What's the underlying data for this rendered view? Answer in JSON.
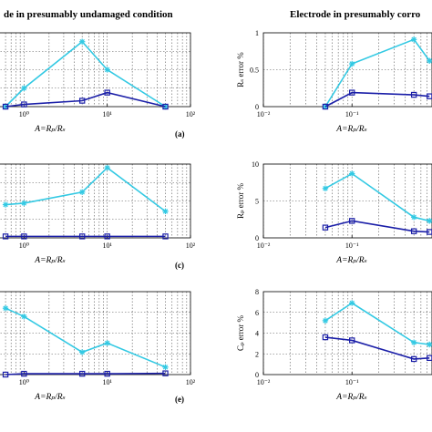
{
  "figure": {
    "left_heading": "de in presumably undamaged condition",
    "right_heading": "Electrode in presumably corro"
  },
  "colors": {
    "cyan": "#33c9e3",
    "navy": "#1b1fa8",
    "grid": "#555555"
  },
  "chart_data": [
    {
      "id": "left-a",
      "type": "line",
      "xscale": "log",
      "x_ticks": [
        "10⁰",
        "10¹",
        "10²"
      ],
      "x_tick_values": [
        1,
        10,
        100
      ],
      "xlim": [
        0.4,
        100
      ],
      "ylim": [
        0,
        1
      ],
      "xlabel": "A=Rₚ/Rₛ",
      "series": [
        {
          "color": "cyan",
          "marker": "star",
          "x": [
            0.6,
            1,
            5,
            10,
            50
          ],
          "y": [
            0.0,
            0.25,
            0.88,
            0.5,
            0.0
          ]
        },
        {
          "color": "navy",
          "marker": "square",
          "x": [
            0.6,
            1,
            5,
            10,
            50
          ],
          "y": [
            0.0,
            0.03,
            0.08,
            0.19,
            0.0
          ]
        }
      ],
      "panel_label": "(a)"
    },
    {
      "id": "right-b",
      "type": "line",
      "xscale": "log",
      "x_ticks": [
        "10⁻²",
        "10⁻¹"
      ],
      "x_tick_values": [
        0.01,
        0.1
      ],
      "y_ticks": [
        "0",
        "0.5",
        "1"
      ],
      "y_tick_values": [
        0,
        0.5,
        1
      ],
      "xlim": [
        0.01,
        0.8
      ],
      "ylim": [
        0,
        1
      ],
      "ylabel": "Rₛ error %",
      "xlabel": "A=Rₚ/Rₛ",
      "series": [
        {
          "color": "cyan",
          "marker": "star",
          "x": [
            0.05,
            0.1,
            0.5,
            0.75
          ],
          "y": [
            0.0,
            0.58,
            0.91,
            0.62
          ]
        },
        {
          "color": "navy",
          "marker": "square",
          "x": [
            0.05,
            0.1,
            0.5,
            0.75
          ],
          "y": [
            0.0,
            0.19,
            0.16,
            0.14
          ]
        }
      ]
    },
    {
      "id": "left-c",
      "type": "line",
      "xscale": "log",
      "x_ticks": [
        "10⁰",
        "10¹",
        "10²"
      ],
      "x_tick_values": [
        1,
        10,
        100
      ],
      "xlim": [
        0.4,
        100
      ],
      "ylim": [
        0,
        10
      ],
      "xlabel": "A=Rₚ/Rₛ",
      "series": [
        {
          "color": "cyan",
          "marker": "star",
          "x": [
            0.6,
            1,
            5,
            10,
            50
          ],
          "y": [
            4.5,
            4.7,
            6.2,
            9.5,
            3.6
          ]
        },
        {
          "color": "navy",
          "marker": "square",
          "x": [
            0.6,
            1,
            5,
            10,
            50
          ],
          "y": [
            0.2,
            0.2,
            0.2,
            0.2,
            0.2
          ]
        }
      ],
      "panel_label": "(c)"
    },
    {
      "id": "right-d",
      "type": "line",
      "xscale": "log",
      "x_ticks": [
        "10⁻²",
        "10⁻¹"
      ],
      "x_tick_values": [
        0.01,
        0.1
      ],
      "y_ticks": [
        "0",
        "5",
        "10"
      ],
      "y_tick_values": [
        0,
        5,
        10
      ],
      "xlim": [
        0.01,
        0.8
      ],
      "ylim": [
        0,
        10
      ],
      "ylabel": "Rₚ error %",
      "xlabel": "A=Rₚ/Rₛ",
      "series": [
        {
          "color": "cyan",
          "marker": "star",
          "x": [
            0.05,
            0.1,
            0.5,
            0.75
          ],
          "y": [
            6.7,
            8.7,
            2.8,
            2.3
          ]
        },
        {
          "color": "navy",
          "marker": "square",
          "x": [
            0.05,
            0.1,
            0.5,
            0.75
          ],
          "y": [
            1.4,
            2.3,
            0.9,
            0.8
          ]
        }
      ]
    },
    {
      "id": "left-e",
      "type": "line",
      "xscale": "log",
      "x_ticks": [
        "10⁰",
        "10¹",
        "10²"
      ],
      "x_tick_values": [
        1,
        10,
        100
      ],
      "xlim": [
        0.4,
        100
      ],
      "ylim": [
        0,
        10
      ],
      "xlabel": "A=Rₚ/Rₛ",
      "series": [
        {
          "color": "cyan",
          "marker": "star",
          "x": [
            0.6,
            1,
            5,
            10,
            50
          ],
          "y": [
            8.0,
            7.0,
            2.7,
            3.8,
            0.9
          ]
        },
        {
          "color": "navy",
          "marker": "square",
          "x": [
            0.6,
            1,
            5,
            10,
            50
          ],
          "y": [
            0.0,
            0.1,
            0.1,
            0.1,
            0.15
          ]
        }
      ],
      "panel_label": "(e)"
    },
    {
      "id": "right-f",
      "type": "line",
      "xscale": "log",
      "x_ticks": [
        "10⁻²",
        "10⁻¹"
      ],
      "x_tick_values": [
        0.01,
        0.1
      ],
      "y_ticks": [
        "0",
        "2",
        "4",
        "6",
        "8"
      ],
      "y_tick_values": [
        0,
        2,
        4,
        6,
        8
      ],
      "xlim": [
        0.01,
        0.8
      ],
      "ylim": [
        0,
        8
      ],
      "ylabel": "Cₚ error %",
      "xlabel": "A=Rₚ/Rₛ",
      "series": [
        {
          "color": "cyan",
          "marker": "star",
          "x": [
            0.05,
            0.1,
            0.5,
            0.75
          ],
          "y": [
            5.2,
            6.9,
            3.1,
            2.9
          ]
        },
        {
          "color": "navy",
          "marker": "square",
          "x": [
            0.05,
            0.1,
            0.5,
            0.75
          ],
          "y": [
            3.6,
            3.3,
            1.5,
            1.6
          ]
        }
      ]
    }
  ]
}
